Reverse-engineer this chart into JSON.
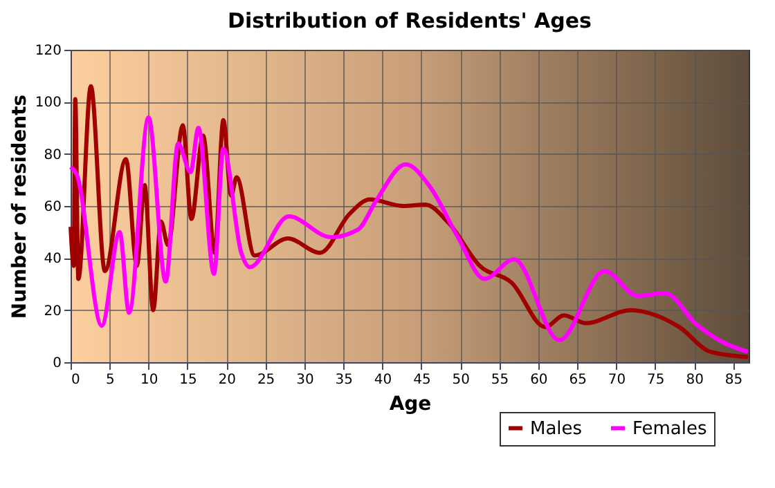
{
  "chart_data": {
    "type": "line",
    "title": "Distribution of Residents' Ages",
    "xlabel": "Age",
    "ylabel": "Number of residents",
    "xlim": [
      0,
      87
    ],
    "xticks": [
      0,
      5,
      10,
      15,
      20,
      25,
      30,
      35,
      40,
      45,
      50,
      55,
      60,
      65,
      70,
      75,
      80,
      85
    ],
    "ylim": [
      0,
      120
    ],
    "yticks": [
      0,
      20,
      40,
      60,
      80,
      100,
      120
    ],
    "grid": true,
    "legend": "bottom right",
    "series": [
      {
        "name": "Males",
        "color": "#a00000",
        "x": [
          0,
          0.4,
          0.6,
          1.0,
          2.6,
          4.4,
          7.1,
          8.5,
          9.5,
          10.6,
          11.6,
          12.5,
          14.4,
          15.5,
          17.0,
          18.5,
          19.6,
          20.6,
          21.3,
          23.6,
          27.9,
          32.0,
          35.8,
          38.4,
          42.7,
          45.5,
          48.5,
          52.5,
          56.6,
          60.9,
          63.3,
          66.1,
          71.9,
          75.1,
          78.1,
          82.1,
          86.9
        ],
        "values": [
          52,
          37,
          101,
          32,
          106,
          35,
          78,
          37,
          68,
          20,
          54,
          45,
          91,
          55,
          87,
          42,
          93,
          64,
          71,
          41,
          47.5,
          42,
          57,
          62.5,
          60,
          60.5,
          53.5,
          37,
          30.5,
          13.5,
          18,
          15,
          20,
          18,
          13.5,
          4,
          2
        ]
      },
      {
        "name": "Females",
        "color": "#ff00ff",
        "x": [
          0,
          0.8,
          4.0,
          6.3,
          7.5,
          10.0,
          12.2,
          13.8,
          15.4,
          16.4,
          18.4,
          19.6,
          21.9,
          23.0,
          28.0,
          33.4,
          36.9,
          39.2,
          43.0,
          46.2,
          49.7,
          53.1,
          56.9,
          62.7,
          68.5,
          72.8,
          76.3,
          80.3,
          83.8,
          86.9
        ],
        "values": [
          75,
          72,
          14,
          50,
          19,
          94,
          31,
          84,
          73,
          90,
          34,
          82,
          42,
          36.5,
          56,
          48,
          51,
          62,
          76,
          67,
          48,
          32,
          39.5,
          8.5,
          35,
          25.5,
          26.5,
          14.5,
          7.5,
          4
        ]
      }
    ]
  }
}
